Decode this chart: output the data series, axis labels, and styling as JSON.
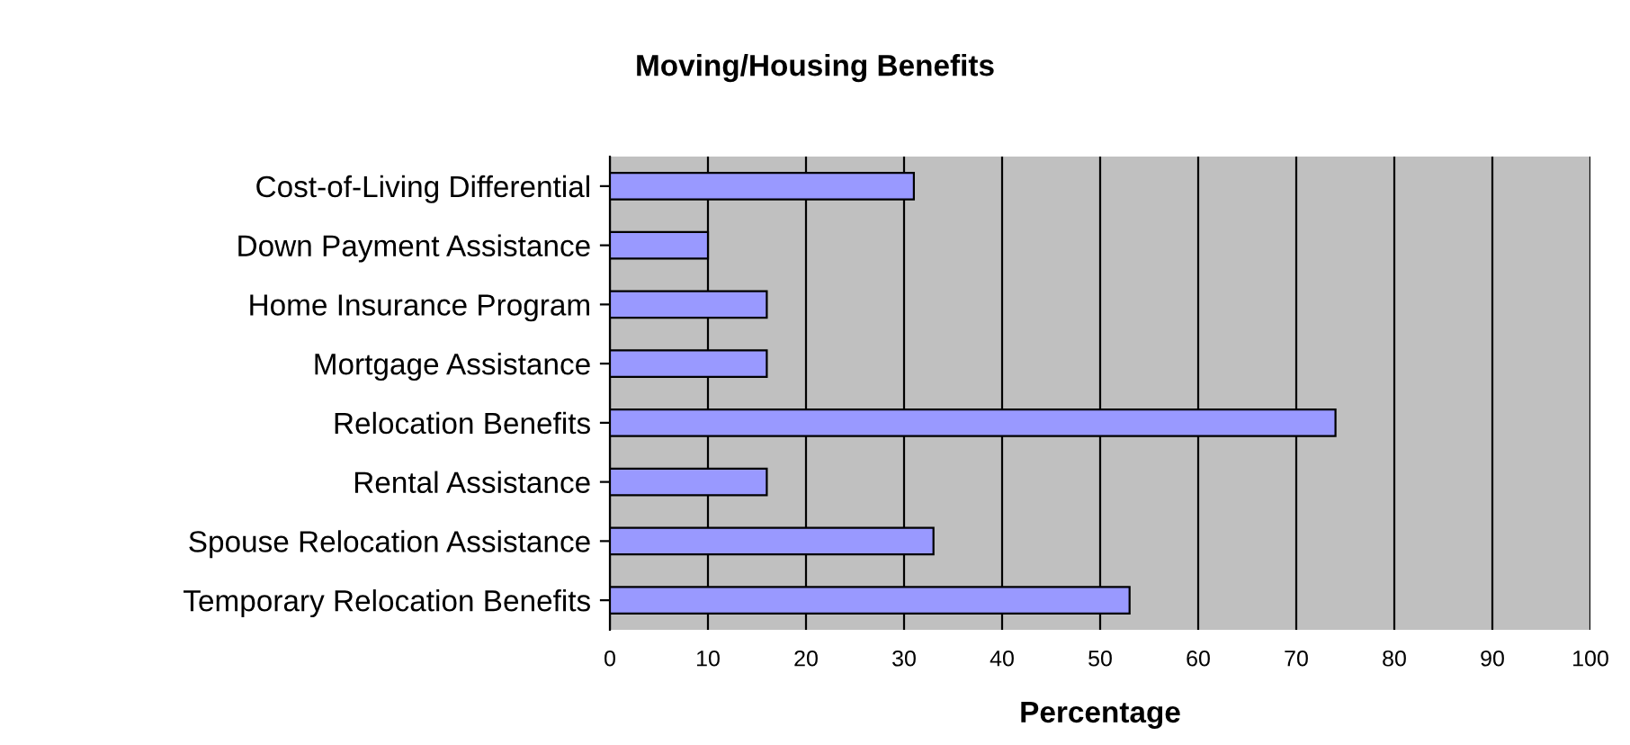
{
  "chart_data": {
    "type": "bar",
    "orientation": "horizontal",
    "title": "Moving/Housing Benefits",
    "xlabel": "Percentage",
    "categories": [
      "Cost-of-Living Differential",
      "Down Payment Assistance",
      "Home Insurance Program",
      "Mortgage Assistance",
      "Relocation Benefits",
      "Rental Assistance",
      "Spouse Relocation Assistance",
      "Temporary Relocation Benefits"
    ],
    "values": [
      31,
      10,
      16,
      16,
      74,
      16,
      33,
      53
    ],
    "color": "#9999ff",
    "xlim": [
      0,
      100
    ],
    "xticks": [
      0,
      10,
      20,
      30,
      40,
      50,
      60,
      70,
      80,
      90,
      100
    ],
    "grid": "x",
    "legend": false
  }
}
